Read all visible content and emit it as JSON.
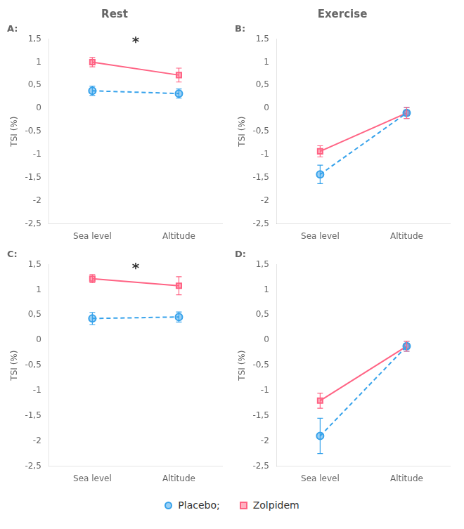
{
  "chart_data": [
    {
      "type": "line",
      "title": "Rest",
      "subtitle": "A:",
      "categories": [
        "Sea level",
        "Altitude"
      ],
      "series": [
        {
          "name": "Placebo;",
          "values": [
            0.38,
            0.32
          ],
          "errors": [
            0.1,
            0.1
          ],
          "marker": "circle",
          "line_style": "dashed"
        },
        {
          "name": "Zolpidem",
          "values": [
            1.0,
            0.72
          ],
          "errors": [
            0.1,
            0.15
          ],
          "marker": "square",
          "line_style": "solid"
        }
      ],
      "annotations": [
        {
          "text": "*",
          "x": 0.5,
          "y": 1.42
        }
      ],
      "ylabel": "TSI (%)",
      "ylim": [
        -2.5,
        1.5
      ],
      "yticks": [
        {
          "value": -2.5,
          "label": "-2,5"
        },
        -2,
        {
          "value": -1.5,
          "label": "-1,5"
        },
        -1,
        {
          "value": -0.5,
          "label": "-0,5"
        },
        0,
        {
          "value": 0.5,
          "label": "0,5"
        },
        1,
        {
          "value": 1.5,
          "label": "1,5"
        }
      ],
      "grid": false,
      "legend": "bottom"
    },
    {
      "type": "line",
      "title": "Exercise",
      "subtitle": "B:",
      "categories": [
        "Sea level",
        "Altitude"
      ],
      "series": [
        {
          "name": "Placebo;",
          "values": [
            -1.43,
            -0.1
          ],
          "errors": [
            0.2,
            0.12
          ],
          "marker": "circle",
          "line_style": "dashed"
        },
        {
          "name": "Zolpidem",
          "values": [
            -0.93,
            -0.1
          ],
          "errors": [
            0.12,
            0.12
          ],
          "marker": "square",
          "line_style": "solid"
        }
      ],
      "ylabel": "TSI (%)",
      "ylim": [
        -2.5,
        1.5
      ],
      "yticks": [
        {
          "value": -2.5,
          "label": "-2,5"
        },
        -2,
        {
          "value": -1.5,
          "label": "-1,5"
        },
        -1,
        {
          "value": -0.5,
          "label": "-0,5"
        },
        0,
        {
          "value": 0.5,
          "label": "0,5"
        },
        1,
        {
          "value": 1.5,
          "label": "1,5"
        }
      ],
      "grid": false,
      "legend": "bottom"
    },
    {
      "type": "line",
      "subtitle": "C:",
      "categories": [
        "Sea level",
        "Altitude"
      ],
      "series": [
        {
          "name": "Placebo;",
          "values": [
            0.43,
            0.46
          ],
          "errors": [
            0.12,
            0.1
          ],
          "marker": "circle",
          "line_style": "dashed"
        },
        {
          "name": "Zolpidem",
          "values": [
            1.22,
            1.08
          ],
          "errors": [
            0.08,
            0.18
          ],
          "marker": "square",
          "line_style": "solid"
        }
      ],
      "annotations": [
        {
          "text": "*",
          "x": 0.5,
          "y": 1.42
        }
      ],
      "ylabel": "TSI (%)",
      "ylim": [
        -2.5,
        1.5
      ],
      "yticks": [
        {
          "value": -2.5,
          "label": "-2,5"
        },
        -2,
        {
          "value": -1.5,
          "label": "-1,5"
        },
        -1,
        {
          "value": -0.5,
          "label": "-0,5"
        },
        0,
        {
          "value": 0.5,
          "label": "0,5"
        },
        1,
        {
          "value": 1.5,
          "label": "1,5"
        }
      ],
      "grid": false,
      "legend": "bottom"
    },
    {
      "type": "line",
      "subtitle": "D:",
      "categories": [
        "Sea level",
        "Altitude"
      ],
      "series": [
        {
          "name": "Placebo;",
          "values": [
            -1.9,
            -0.12
          ],
          "errors": [
            0.35,
            0.1
          ],
          "marker": "circle",
          "line_style": "dashed"
        },
        {
          "name": "Zolpidem",
          "values": [
            -1.2,
            -0.12
          ],
          "errors": [
            0.15,
            0.1
          ],
          "marker": "square",
          "line_style": "solid"
        }
      ],
      "ylabel": "TSI (%)",
      "ylim": [
        -2.5,
        1.5
      ],
      "yticks": [
        {
          "value": -2.5,
          "label": "-2,5"
        },
        -2,
        {
          "value": -1.5,
          "label": "-1,5"
        },
        -1,
        {
          "value": -0.5,
          "label": "-0,5"
        },
        0,
        {
          "value": 0.5,
          "label": "0,5"
        },
        1,
        {
          "value": 1.5,
          "label": "1,5"
        }
      ],
      "grid": false,
      "legend": "bottom"
    }
  ]
}
